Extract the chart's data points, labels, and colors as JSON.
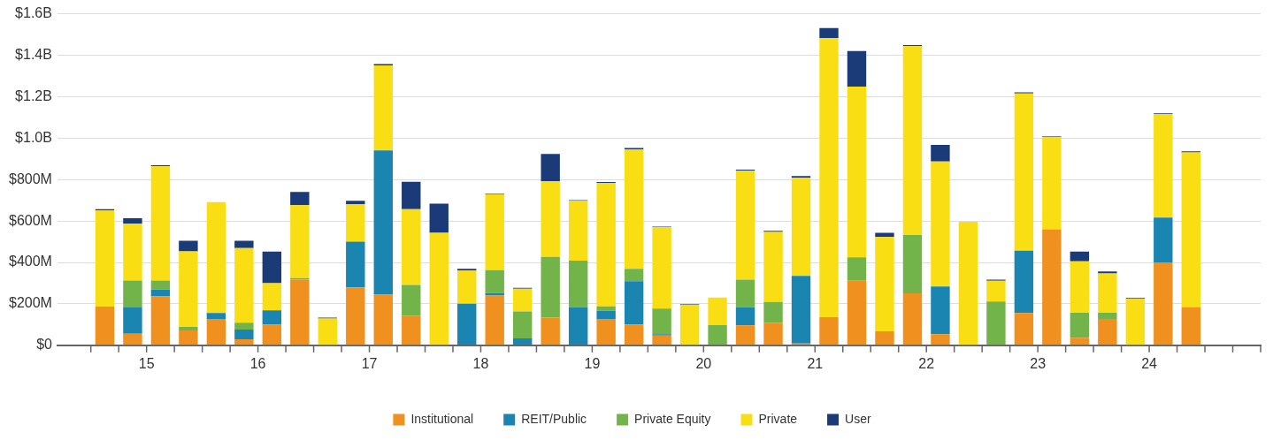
{
  "chart_data": {
    "type": "bar",
    "stacked": true,
    "x": [
      14.625,
      14.875,
      15.125,
      15.375,
      15.625,
      15.875,
      16.125,
      16.375,
      16.625,
      16.875,
      17.125,
      17.375,
      17.625,
      17.875,
      18.125,
      18.375,
      18.625,
      18.875,
      19.125,
      19.375,
      19.625,
      19.875,
      20.125,
      20.375,
      20.625,
      20.875,
      21.125,
      21.375,
      21.625,
      21.875,
      22.125,
      22.375,
      22.625,
      22.875,
      23.125,
      23.375,
      23.625,
      23.875,
      24.125,
      24.375
    ],
    "series": [
      {
        "name": "Institutional",
        "color": "#f0901e",
        "values": [
          187000000,
          56000000,
          236000000,
          72000000,
          127000000,
          29000000,
          99000000,
          317000000,
          0,
          280000000,
          244000000,
          143000000,
          0,
          0,
          240000000,
          0,
          133000000,
          0,
          127000000,
          100000000,
          47000000,
          0,
          0,
          96000000,
          109000000,
          9000000,
          136000000,
          311000000,
          67000000,
          251000000,
          53000000,
          0,
          0,
          156000000,
          560000000,
          36000000,
          127000000,
          0,
          400000000,
          184000000
        ]
      },
      {
        "name": "REIT/Public",
        "color": "#1a85b0",
        "values": [
          0,
          127000000,
          33000000,
          0,
          29000000,
          47000000,
          70000000,
          0,
          0,
          220000000,
          696000000,
          0,
          0,
          201000000,
          12000000,
          33000000,
          0,
          184000000,
          40000000,
          209000000,
          6000000,
          0,
          0,
          88000000,
          0,
          326000000,
          0,
          0,
          0,
          0,
          231000000,
          0,
          0,
          301000000,
          0,
          0,
          0,
          0,
          216000000,
          0
        ]
      },
      {
        "name": "Private Equity",
        "color": "#73b44a",
        "values": [
          0,
          130000000,
          44000000,
          17000000,
          0,
          33000000,
          0,
          7000000,
          0,
          0,
          0,
          148000000,
          0,
          0,
          111000000,
          130000000,
          294000000,
          225000000,
          21000000,
          60000000,
          124000000,
          0,
          97000000,
          133000000,
          100000000,
          0,
          0,
          113000000,
          0,
          281000000,
          0,
          0,
          211000000,
          0,
          0,
          121000000,
          30000000,
          0,
          0,
          0
        ]
      },
      {
        "name": "Private",
        "color": "#fade14",
        "values": [
          464000000,
          274000000,
          551000000,
          364000000,
          535000000,
          360000000,
          131000000,
          352000000,
          129000000,
          180000000,
          411000000,
          366000000,
          543000000,
          160000000,
          366000000,
          110000000,
          364000000,
          288000000,
          596000000,
          576000000,
          392000000,
          196000000,
          134000000,
          527000000,
          338000000,
          474000000,
          1347000000,
          825000000,
          456000000,
          912000000,
          603000000,
          596000000,
          100000000,
          759000000,
          447000000,
          248000000,
          190000000,
          224000000,
          500000000,
          747000000
        ]
      },
      {
        "name": "User",
        "color": "#1b3a78",
        "values": [
          6000000,
          26000000,
          5000000,
          52000000,
          0,
          36000000,
          152000000,
          64000000,
          4000000,
          17000000,
          6000000,
          132000000,
          141000000,
          8000000,
          4000000,
          4000000,
          132000000,
          4000000,
          4000000,
          7000000,
          4000000,
          4000000,
          0,
          4000000,
          5000000,
          8000000,
          48000000,
          171000000,
          20000000,
          5000000,
          80000000,
          0,
          6000000,
          5000000,
          3000000,
          47000000,
          9000000,
          4000000,
          4000000,
          5000000
        ]
      }
    ],
    "xlim": [
      14.2,
      25
    ],
    "xticks": [
      {
        "value": 14.5,
        "label": null
      },
      {
        "value": 14.75,
        "label": null
      },
      15,
      {
        "value": 15.25,
        "label": null
      },
      {
        "value": 15.5,
        "label": null
      },
      {
        "value": 15.75,
        "label": null
      },
      16,
      {
        "value": 16.25,
        "label": null
      },
      {
        "value": 16.5,
        "label": null
      },
      {
        "value": 16.75,
        "label": null
      },
      17,
      {
        "value": 17.25,
        "label": null
      },
      {
        "value": 17.5,
        "label": null
      },
      {
        "value": 17.75,
        "label": null
      },
      18,
      {
        "value": 18.25,
        "label": null
      },
      {
        "value": 18.5,
        "label": null
      },
      {
        "value": 18.75,
        "label": null
      },
      19,
      {
        "value": 19.25,
        "label": null
      },
      {
        "value": 19.5,
        "label": null
      },
      {
        "value": 19.75,
        "label": null
      },
      20,
      {
        "value": 20.25,
        "label": null
      },
      {
        "value": 20.5,
        "label": null
      },
      {
        "value": 20.75,
        "label": null
      },
      21,
      {
        "value": 21.25,
        "label": null
      },
      {
        "value": 21.5,
        "label": null
      },
      {
        "value": 21.75,
        "label": null
      },
      22,
      {
        "value": 22.25,
        "label": null
      },
      {
        "value": 22.5,
        "label": null
      },
      {
        "value": 22.75,
        "label": null
      },
      23,
      {
        "value": 23.25,
        "label": null
      },
      {
        "value": 23.5,
        "label": null
      },
      {
        "value": 23.75,
        "label": null
      },
      24,
      {
        "value": 24.25,
        "label": null
      },
      {
        "value": 24.5,
        "label": null
      },
      {
        "value": 24.75,
        "label": null
      },
      {
        "value": 25,
        "label": null
      }
    ],
    "ylim": [
      0,
      1600000000
    ],
    "yticks": [
      {
        "value": 0,
        "label": "$0"
      },
      {
        "value": 200000000,
        "label": "$200M"
      },
      {
        "value": 400000000,
        "label": "$400M"
      },
      {
        "value": 600000000,
        "label": "$600M"
      },
      {
        "value": 800000000,
        "label": "$800M"
      },
      {
        "value": 1000000000,
        "label": "$1.0B"
      },
      {
        "value": 1200000000,
        "label": "$1.2B"
      },
      {
        "value": 1400000000,
        "label": "$1.4B"
      },
      {
        "value": 1600000000,
        "label": "$1.6B"
      }
    ],
    "grid": "y",
    "legend": "bottom"
  }
}
